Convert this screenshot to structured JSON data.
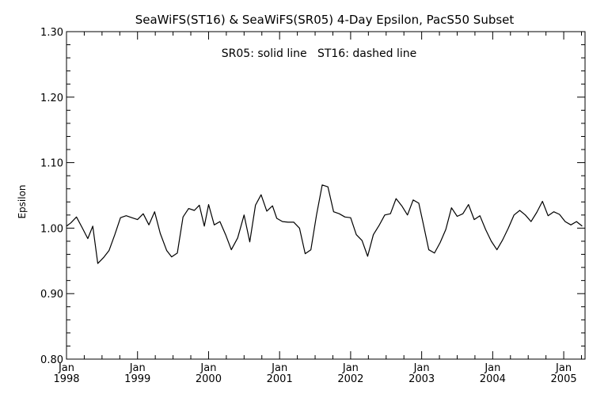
{
  "chart_data": {
    "type": "line",
    "title": "SeaWiFS(ST16) & SeaWiFS(SR05) 4-Day Epsilon, PacS50 Subset",
    "annotation": "SR05: solid line   ST16: dashed line",
    "ylabel": "Epsilon",
    "xlabel": "",
    "xlim": [
      1998.0,
      2005.3
    ],
    "ylim": [
      0.8,
      1.3
    ],
    "y_ticks": [
      {
        "value": 0.8,
        "label": "0.80"
      },
      {
        "value": 0.9,
        "label": "0.90"
      },
      {
        "value": 1.0,
        "label": "1.00"
      },
      {
        "value": 1.1,
        "label": "1.10"
      },
      {
        "value": 1.2,
        "label": "1.20"
      },
      {
        "value": 1.3,
        "label": "1.30"
      }
    ],
    "x_ticks": [
      {
        "value": 1998,
        "month": "Jan",
        "year": "1998"
      },
      {
        "value": 1999,
        "month": "Jan",
        "year": "1999"
      },
      {
        "value": 2000,
        "month": "Jan",
        "year": "2000"
      },
      {
        "value": 2001,
        "month": "Jan",
        "year": "2001"
      },
      {
        "value": 2002,
        "month": "Jan",
        "year": "2002"
      },
      {
        "value": 2003,
        "month": "Jan",
        "year": "2003"
      },
      {
        "value": 2004,
        "month": "Jan",
        "year": "2004"
      },
      {
        "value": 2005,
        "month": "Jan",
        "year": "2005"
      }
    ],
    "grid": false,
    "series": [
      {
        "style": "solid",
        "color": "#000000",
        "x": [
          1998.0,
          1998.06,
          1998.14,
          1998.22,
          1998.3,
          1998.37,
          1998.44,
          1998.52,
          1998.6,
          1998.68,
          1998.76,
          1998.84,
          1998.92,
          1999.0,
          1999.08,
          1999.16,
          1999.24,
          1999.32,
          1999.41,
          1999.48,
          1999.56,
          1999.64,
          1999.72,
          1999.8,
          1999.87,
          1999.94,
          2000.0,
          2000.08,
          2000.16,
          2000.24,
          2000.32,
          2000.41,
          2000.5,
          2000.58,
          2000.66,
          2000.74,
          2000.82,
          2000.9,
          2000.96,
          2001.04,
          2001.12,
          2001.2,
          2001.28,
          2001.36,
          2001.44,
          2001.52,
          2001.6,
          2001.68,
          2001.76,
          2001.84,
          2001.92,
          2002.0,
          2002.08,
          2002.16,
          2002.24,
          2002.32,
          2002.4,
          2002.48,
          2002.56,
          2002.64,
          2002.72,
          2002.8,
          2002.88,
          2002.96,
          2003.02,
          2003.1,
          2003.18,
          2003.26,
          2003.34,
          2003.42,
          2003.5,
          2003.58,
          2003.66,
          2003.74,
          2003.82,
          2003.9,
          2003.98,
          2004.06,
          2004.14,
          2004.22,
          2004.3,
          2004.38,
          2004.46,
          2004.54,
          2004.62,
          2004.7,
          2004.78,
          2004.86,
          2004.94,
          2005.02,
          2005.1,
          2005.18,
          2005.26
        ],
        "y": [
          1.003,
          1.008,
          1.017,
          1.001,
          0.984,
          1.003,
          0.946,
          0.955,
          0.966,
          0.99,
          1.016,
          1.019,
          1.016,
          1.013,
          1.022,
          1.005,
          1.025,
          0.992,
          0.966,
          0.956,
          0.962,
          1.017,
          1.03,
          1.027,
          1.035,
          1.003,
          1.036,
          1.005,
          1.01,
          0.99,
          0.967,
          0.985,
          1.02,
          0.979,
          1.035,
          1.051,
          1.026,
          1.034,
          1.015,
          1.01,
          1.009,
          1.009,
          1.0,
          0.961,
          0.967,
          1.02,
          1.066,
          1.063,
          1.025,
          1.022,
          1.017,
          1.016,
          0.99,
          0.981,
          0.957,
          0.99,
          1.004,
          1.02,
          1.022,
          1.045,
          1.034,
          1.02,
          1.043,
          1.038,
          1.008,
          0.967,
          0.962,
          0.978,
          0.998,
          1.031,
          1.018,
          1.022,
          1.036,
          1.013,
          1.019,
          0.998,
          0.98,
          0.967,
          0.982,
          1.0,
          1.02,
          1.027,
          1.02,
          1.01,
          1.024,
          1.041,
          1.019,
          1.025,
          1.021,
          1.01,
          1.005,
          1.01,
          1.003
        ]
      }
    ]
  }
}
